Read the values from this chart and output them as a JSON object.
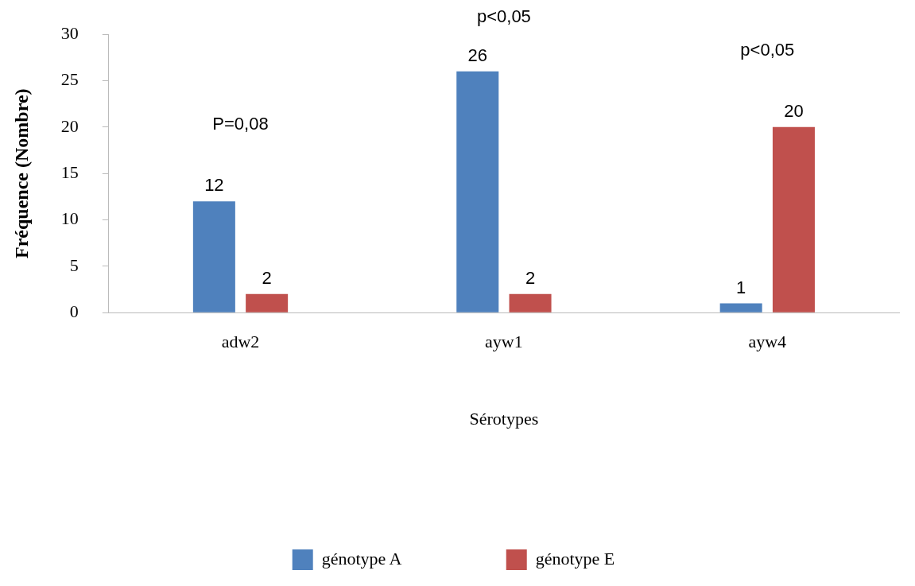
{
  "chart_data": {
    "type": "bar",
    "xlabel": "Sérotypes",
    "ylabel": "Fréquence (Nombre)",
    "categories": [
      "adw2",
      "ayw1",
      "ayw4"
    ],
    "series": [
      {
        "name": "génotype A",
        "color": "#4f81bd",
        "values": [
          12,
          26,
          1
        ]
      },
      {
        "name": "génotype E",
        "color": "#c0504d",
        "values": [
          2,
          2,
          20
        ]
      }
    ],
    "ylim": [
      0,
      30
    ],
    "yticks": [
      0,
      5,
      10,
      15,
      20,
      25,
      30
    ],
    "grid": false,
    "legend": "bottom",
    "data_labels": true,
    "annotations": [
      "P=0,08",
      "p<0,05",
      "p<0,05"
    ]
  }
}
